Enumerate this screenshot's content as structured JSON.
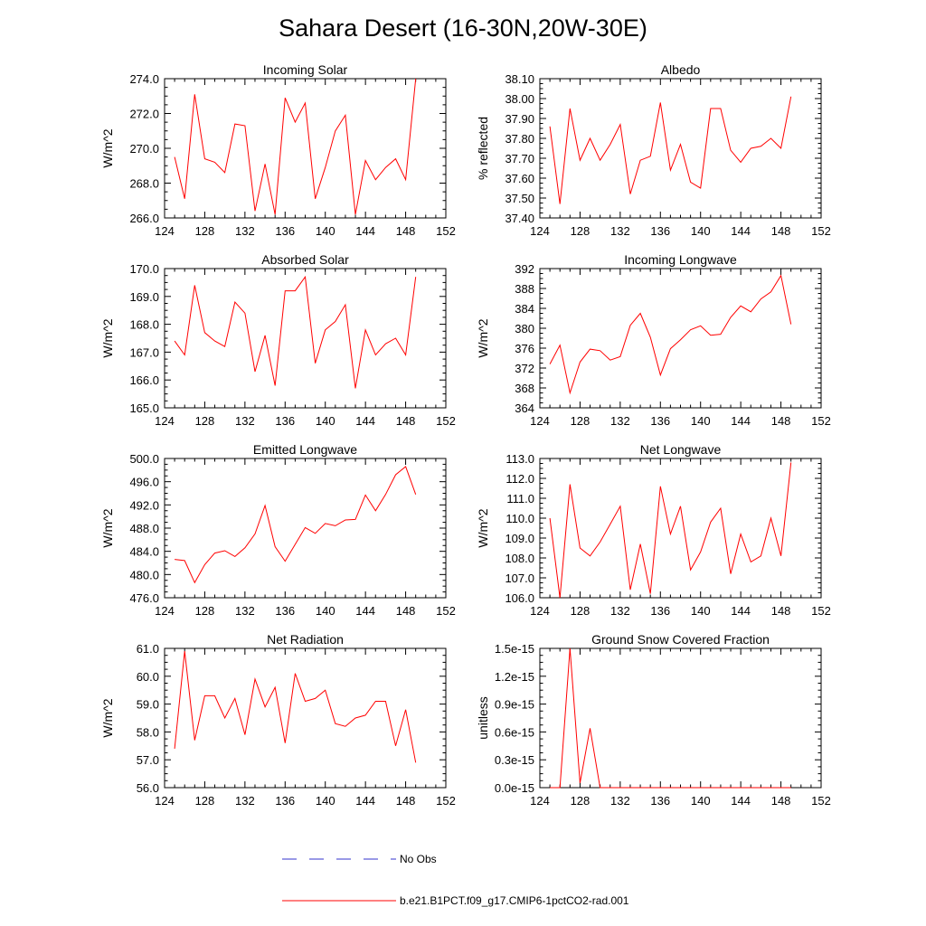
{
  "title": "Sahara Desert (16-30N,20W-30E)",
  "colors": {
    "model_line": "#ff0000",
    "obs_line": "#3333cc",
    "axes": "#000000"
  },
  "legend": {
    "obs_label": "No Obs",
    "model_label": "b.e21.B1PCT.f09_g17.CMIP6-1pctCO2-rad.001"
  },
  "chart_data": [
    {
      "type": "line",
      "title": "Incoming Solar",
      "xlabel": "",
      "ylabel": "W/m^2",
      "xlim": [
        124,
        152
      ],
      "ylim": [
        266,
        274
      ],
      "xticks": [
        124,
        128,
        132,
        136,
        140,
        144,
        148,
        152
      ],
      "xtick_labels": [
        "124",
        "128",
        "132",
        "136",
        "140",
        "144",
        "148",
        "152"
      ],
      "yticks": [
        266,
        268,
        270,
        272,
        274
      ],
      "ytick_labels": [
        "266.0",
        "268.0",
        "270.0",
        "272.0",
        "274.0"
      ],
      "x": [
        125,
        126,
        127,
        128,
        129,
        130,
        131,
        132,
        133,
        134,
        135,
        136,
        137,
        138,
        139,
        140,
        141,
        142,
        143,
        144,
        145,
        146,
        147,
        148,
        149
      ],
      "y": [
        269.5,
        267.1,
        273.1,
        269.4,
        269.2,
        268.6,
        271.4,
        271.3,
        266.4,
        269.1,
        266.2,
        272.9,
        271.5,
        272.6,
        267.1,
        268.9,
        271.0,
        271.9,
        266.2,
        269.3,
        268.2,
        268.9,
        269.4,
        268.2,
        274.0
      ]
    },
    {
      "type": "line",
      "title": "Albedo",
      "xlabel": "",
      "ylabel": "% reflected",
      "xlim": [
        124,
        152
      ],
      "ylim": [
        37.4,
        38.1
      ],
      "xticks": [
        124,
        128,
        132,
        136,
        140,
        144,
        148,
        152
      ],
      "xtick_labels": [
        "124",
        "128",
        "132",
        "136",
        "140",
        "144",
        "148",
        "152"
      ],
      "yticks": [
        37.4,
        37.5,
        37.6,
        37.7,
        37.8,
        37.9,
        38.0,
        38.1
      ],
      "ytick_labels": [
        "37.40",
        "37.50",
        "37.60",
        "37.70",
        "37.80",
        "37.90",
        "38.00",
        "38.10"
      ],
      "x": [
        125,
        126,
        127,
        128,
        129,
        130,
        131,
        132,
        133,
        134,
        135,
        136,
        137,
        138,
        139,
        140,
        141,
        142,
        143,
        144,
        145,
        146,
        147,
        148,
        149
      ],
      "y": [
        37.86,
        37.47,
        37.95,
        37.69,
        37.8,
        37.69,
        37.77,
        37.87,
        37.52,
        37.69,
        37.71,
        37.98,
        37.64,
        37.77,
        37.58,
        37.55,
        37.95,
        37.95,
        37.74,
        37.68,
        37.75,
        37.76,
        37.8,
        37.75,
        38.01
      ]
    },
    {
      "type": "line",
      "title": "Absorbed Solar",
      "xlabel": "",
      "ylabel": "W/m^2",
      "xlim": [
        124,
        152
      ],
      "ylim": [
        165,
        170
      ],
      "xticks": [
        124,
        128,
        132,
        136,
        140,
        144,
        148,
        152
      ],
      "xtick_labels": [
        "124",
        "128",
        "132",
        "136",
        "140",
        "144",
        "148",
        "152"
      ],
      "yticks": [
        165,
        166,
        167,
        168,
        169,
        170
      ],
      "ytick_labels": [
        "165.0",
        "166.0",
        "167.0",
        "168.0",
        "169.0",
        "170.0"
      ],
      "x": [
        125,
        126,
        127,
        128,
        129,
        130,
        131,
        132,
        133,
        134,
        135,
        136,
        137,
        138,
        139,
        140,
        141,
        142,
        143,
        144,
        145,
        146,
        147,
        148,
        149
      ],
      "y": [
        167.4,
        166.9,
        169.4,
        167.7,
        167.4,
        167.2,
        168.8,
        168.4,
        166.3,
        167.6,
        165.8,
        169.2,
        169.2,
        169.7,
        166.6,
        167.8,
        168.1,
        168.7,
        165.7,
        167.8,
        166.9,
        167.3,
        167.5,
        166.9,
        169.7
      ]
    },
    {
      "type": "line",
      "title": "Incoming Longwave",
      "xlabel": "",
      "ylabel": "W/m^2",
      "xlim": [
        124,
        152
      ],
      "ylim": [
        364,
        392
      ],
      "xticks": [
        124,
        128,
        132,
        136,
        140,
        144,
        148,
        152
      ],
      "xtick_labels": [
        "124",
        "128",
        "132",
        "136",
        "140",
        "144",
        "148",
        "152"
      ],
      "yticks": [
        364,
        368,
        372,
        376,
        380,
        384,
        388,
        392
      ],
      "ytick_labels": [
        "364",
        "368",
        "372",
        "376",
        "380",
        "384",
        "388",
        "392"
      ],
      "x": [
        125,
        126,
        127,
        128,
        129,
        130,
        131,
        132,
        133,
        134,
        135,
        136,
        137,
        138,
        139,
        140,
        141,
        142,
        143,
        144,
        145,
        146,
        147,
        148,
        149
      ],
      "y": [
        372.8,
        376.6,
        367.0,
        373.2,
        375.8,
        375.5,
        373.6,
        374.3,
        380.6,
        383.0,
        378.2,
        370.6,
        375.9,
        377.7,
        379.7,
        380.5,
        378.6,
        378.8,
        382.2,
        384.5,
        383.3,
        385.9,
        387.3,
        390.6,
        380.8
      ]
    },
    {
      "type": "line",
      "title": "Emitted Longwave",
      "xlabel": "",
      "ylabel": "W/m^2",
      "xlim": [
        124,
        152
      ],
      "ylim": [
        476,
        500
      ],
      "xticks": [
        124,
        128,
        132,
        136,
        140,
        144,
        148,
        152
      ],
      "xtick_labels": [
        "124",
        "128",
        "132",
        "136",
        "140",
        "144",
        "148",
        "152"
      ],
      "yticks": [
        476,
        480,
        484,
        488,
        492,
        496,
        500
      ],
      "ytick_labels": [
        "476.0",
        "480.0",
        "484.0",
        "488.0",
        "492.0",
        "496.0",
        "500.0"
      ],
      "x": [
        125,
        126,
        127,
        128,
        129,
        130,
        131,
        132,
        133,
        134,
        135,
        136,
        137,
        138,
        139,
        140,
        141,
        142,
        143,
        144,
        145,
        146,
        147,
        148,
        149
      ],
      "y": [
        482.6,
        482.4,
        478.6,
        481.7,
        483.7,
        484.1,
        483.1,
        484.6,
        487.0,
        491.9,
        484.8,
        482.3,
        485.2,
        488.1,
        487.1,
        488.8,
        488.4,
        489.4,
        489.5,
        493.7,
        491.0,
        493.8,
        497.2,
        498.6,
        493.8
      ]
    },
    {
      "type": "line",
      "title": "Net Longwave",
      "xlabel": "",
      "ylabel": "W/m^2",
      "xlim": [
        124,
        152
      ],
      "ylim": [
        106,
        113
      ],
      "xticks": [
        124,
        128,
        132,
        136,
        140,
        144,
        148,
        152
      ],
      "xtick_labels": [
        "124",
        "128",
        "132",
        "136",
        "140",
        "144",
        "148",
        "152"
      ],
      "yticks": [
        106,
        107,
        108,
        109,
        110,
        111,
        112,
        113
      ],
      "ytick_labels": [
        "106.0",
        "107.0",
        "108.0",
        "109.0",
        "110.0",
        "111.0",
        "112.0",
        "113.0"
      ],
      "x": [
        125,
        126,
        127,
        128,
        129,
        130,
        131,
        132,
        133,
        134,
        135,
        136,
        137,
        138,
        139,
        140,
        141,
        142,
        143,
        144,
        145,
        146,
        147,
        148,
        149
      ],
      "y": [
        110.0,
        106.0,
        111.7,
        108.5,
        108.1,
        108.8,
        109.7,
        110.6,
        106.4,
        108.7,
        106.2,
        111.6,
        109.2,
        110.6,
        107.4,
        108.3,
        109.8,
        110.5,
        107.2,
        109.2,
        107.8,
        108.1,
        110.0,
        108.1,
        112.8
      ]
    },
    {
      "type": "line",
      "title": "Net Radiation",
      "xlabel": "",
      "ylabel": "W/m^2",
      "xlim": [
        124,
        152
      ],
      "ylim": [
        56,
        61
      ],
      "xticks": [
        124,
        128,
        132,
        136,
        140,
        144,
        148,
        152
      ],
      "xtick_labels": [
        "124",
        "128",
        "132",
        "136",
        "140",
        "144",
        "148",
        "152"
      ],
      "yticks": [
        56,
        57,
        58,
        59,
        60,
        61
      ],
      "ytick_labels": [
        "56.0",
        "57.0",
        "58.0",
        "59.0",
        "60.0",
        "61.0"
      ],
      "x": [
        125,
        126,
        127,
        128,
        129,
        130,
        131,
        132,
        133,
        134,
        135,
        136,
        137,
        138,
        139,
        140,
        141,
        142,
        143,
        144,
        145,
        146,
        147,
        148,
        149
      ],
      "y": [
        57.4,
        60.9,
        57.7,
        59.3,
        59.3,
        58.5,
        59.2,
        57.9,
        59.9,
        58.9,
        59.6,
        57.6,
        60.1,
        59.1,
        59.2,
        59.5,
        58.3,
        58.2,
        58.5,
        58.6,
        59.1,
        59.1,
        57.5,
        58.8,
        56.9
      ]
    },
    {
      "type": "line",
      "title": "Ground Snow Covered Fraction",
      "xlabel": "",
      "ylabel": "unitless",
      "xlim": [
        124,
        152
      ],
      "ylim": [
        0,
        1.5
      ],
      "y_unit_note": "values in units of 1e-15",
      "xticks": [
        124,
        128,
        132,
        136,
        140,
        144,
        148,
        152
      ],
      "xtick_labels": [
        "124",
        "128",
        "132",
        "136",
        "140",
        "144",
        "148",
        "152"
      ],
      "yticks": [
        0,
        0.3,
        0.6,
        0.9,
        1.2,
        1.5
      ],
      "ytick_labels": [
        "0.0e-15",
        "0.3e-15",
        "0.6e-15",
        "0.9e-15",
        "1.2e-15",
        "1.5e-15"
      ],
      "x": [
        125,
        126,
        127,
        128,
        129,
        130,
        131,
        132,
        133,
        134,
        135,
        136,
        137,
        138,
        139,
        140,
        141,
        142,
        143,
        144,
        145,
        146,
        147,
        148,
        149
      ],
      "y": [
        0,
        0,
        1.5,
        0.05,
        0.64,
        0,
        0,
        0,
        0,
        0,
        0,
        0,
        0,
        0,
        0,
        0,
        0,
        0,
        0,
        0,
        0,
        0,
        0,
        0,
        0
      ]
    }
  ]
}
